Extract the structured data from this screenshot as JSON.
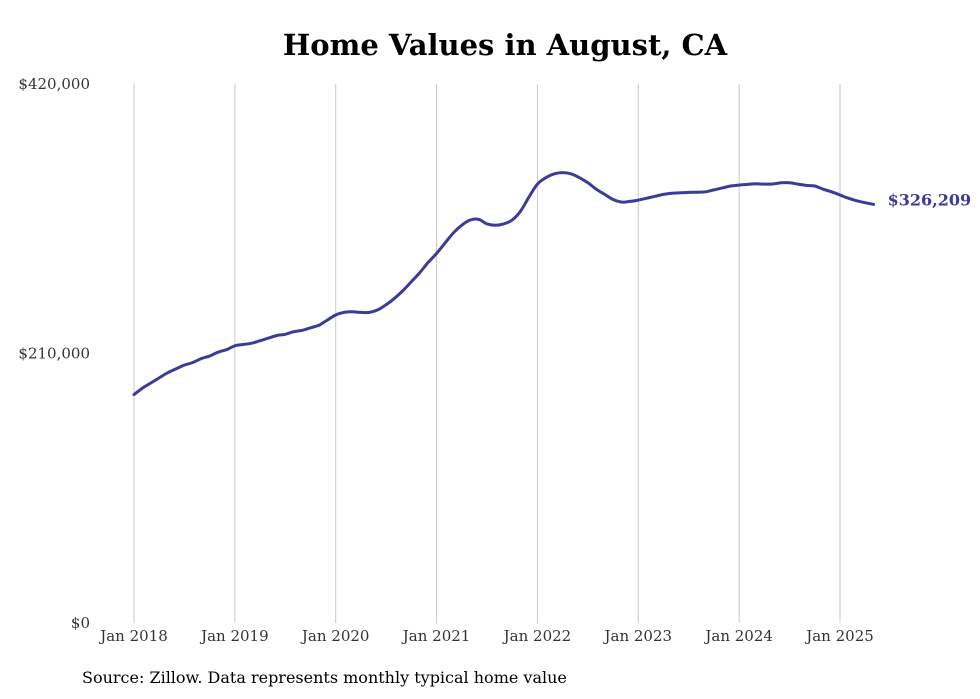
{
  "chart_data": {
    "type": "line",
    "title": "Home Values in August, CA",
    "source": "Source: Zillow. Data represents monthly typical home value",
    "xlabel": "",
    "ylabel": "",
    "ylim": [
      0,
      420000
    ],
    "y_ticks": [
      0,
      210000,
      420000
    ],
    "y_tick_labels": [
      "$0",
      "$210,000",
      "$420,000"
    ],
    "x_range": [
      "2018-01",
      "2025-05"
    ],
    "x_ticks": [
      "2018-01",
      "2019-01",
      "2020-01",
      "2021-01",
      "2022-01",
      "2023-01",
      "2024-01",
      "2025-01"
    ],
    "x_tick_labels": [
      "Jan 2018",
      "Jan 2019",
      "Jan 2020",
      "Jan 2021",
      "Jan 2022",
      "Jan 2023",
      "Jan 2024",
      "Jan 2025"
    ],
    "grid": {
      "vertical": true,
      "horizontal": false
    },
    "end_label": "$326,209",
    "colors": {
      "line": "#3b3b98",
      "grid": "#c8c8c8",
      "text": "#333333"
    },
    "series": [
      {
        "x": [
          "2018-01",
          "2018-02",
          "2018-03",
          "2018-04",
          "2018-05",
          "2018-06",
          "2018-07",
          "2018-08",
          "2018-09",
          "2018-10",
          "2018-11",
          "2018-12",
          "2019-01",
          "2019-02",
          "2019-03",
          "2019-04",
          "2019-05",
          "2019-06",
          "2019-07",
          "2019-08",
          "2019-09",
          "2019-10",
          "2019-11",
          "2019-12",
          "2020-01",
          "2020-02",
          "2020-03",
          "2020-04",
          "2020-05",
          "2020-06",
          "2020-07",
          "2020-08",
          "2020-09",
          "2020-10",
          "2020-11",
          "2020-12",
          "2021-01",
          "2021-02",
          "2021-03",
          "2021-04",
          "2021-05",
          "2021-06",
          "2021-07",
          "2021-08",
          "2021-09",
          "2021-10",
          "2021-11",
          "2021-12",
          "2022-01",
          "2022-02",
          "2022-03",
          "2022-04",
          "2022-05",
          "2022-06",
          "2022-07",
          "2022-08",
          "2022-09",
          "2022-10",
          "2022-11",
          "2022-12",
          "2023-01",
          "2023-02",
          "2023-03",
          "2023-04",
          "2023-05",
          "2023-06",
          "2023-07",
          "2023-08",
          "2023-09",
          "2023-10",
          "2023-11",
          "2023-12",
          "2024-01",
          "2024-02",
          "2024-03",
          "2024-04",
          "2024-05",
          "2024-06",
          "2024-07",
          "2024-08",
          "2024-09",
          "2024-10",
          "2024-11",
          "2024-12",
          "2025-01",
          "2025-02",
          "2025-03",
          "2025-04",
          "2025-05"
        ],
        "values": [
          178000,
          183000,
          187000,
          191000,
          195000,
          198000,
          201000,
          203000,
          206000,
          208000,
          211000,
          213000,
          216000,
          217000,
          218000,
          220000,
          222000,
          224000,
          225000,
          227000,
          228000,
          230000,
          232000,
          236000,
          240000,
          242000,
          242500,
          242000,
          242000,
          244000,
          248000,
          253000,
          259000,
          266000,
          273000,
          281000,
          288000,
          296000,
          304000,
          310000,
          314000,
          314500,
          311000,
          310000,
          311000,
          314000,
          321000,
          332000,
          342000,
          347000,
          350000,
          351000,
          350000,
          347000,
          343000,
          338000,
          334000,
          330000,
          328000,
          328500,
          329500,
          331000,
          332500,
          334000,
          334800,
          335200,
          335500,
          335700,
          336000,
          337500,
          339000,
          340500,
          341200,
          341800,
          342200,
          342000,
          342100,
          343000,
          343000,
          342000,
          341000,
          340500,
          338000,
          336000,
          333500,
          331000,
          329000,
          327500,
          326209
        ]
      }
    ]
  }
}
